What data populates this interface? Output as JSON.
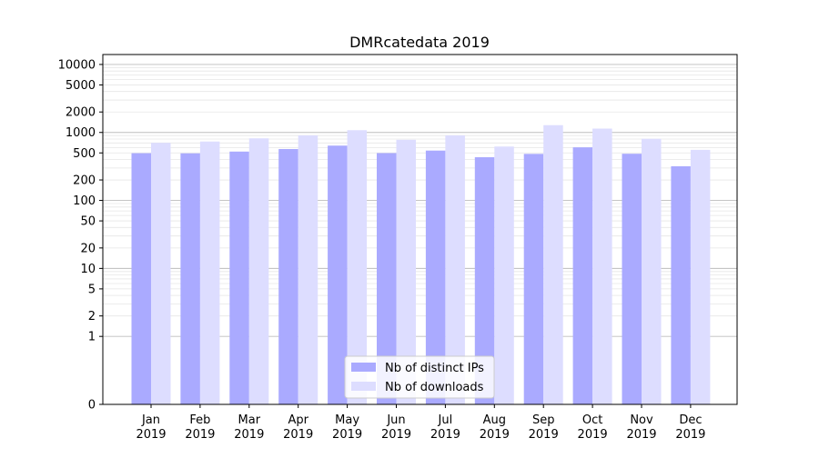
{
  "chart_data": {
    "type": "bar",
    "title": "DMRcatedata 2019",
    "xlabel": "",
    "ylabel": "",
    "y_scale": "symlog",
    "ylim": [
      0,
      14000
    ],
    "y_ticks": [
      "0",
      "1",
      "2",
      "5",
      "10",
      "20",
      "50",
      "100",
      "200",
      "500",
      "1000",
      "2000",
      "5000",
      "10000"
    ],
    "categories": [
      "Jan\n2019",
      "Feb\n2019",
      "Mar\n2019",
      "Apr\n2019",
      "May\n2019",
      "Jun\n2019",
      "Jul\n2019",
      "Aug\n2019",
      "Sep\n2019",
      "Oct\n2019",
      "Nov\n2019",
      "Dec\n2019"
    ],
    "series": [
      {
        "name": "Nb of distinct IPs",
        "color": "#aaaaff",
        "values": [
          495,
          493,
          523,
          570,
          640,
          497,
          541,
          432,
          484,
          604,
          486,
          318
        ]
      },
      {
        "name": "Nb of downloads",
        "color": "#ddddff",
        "values": [
          702,
          735,
          820,
          905,
          1080,
          780,
          905,
          620,
          1280,
          1140,
          806,
          555
        ]
      }
    ],
    "grid": true,
    "legend_position": "bottom-center"
  }
}
